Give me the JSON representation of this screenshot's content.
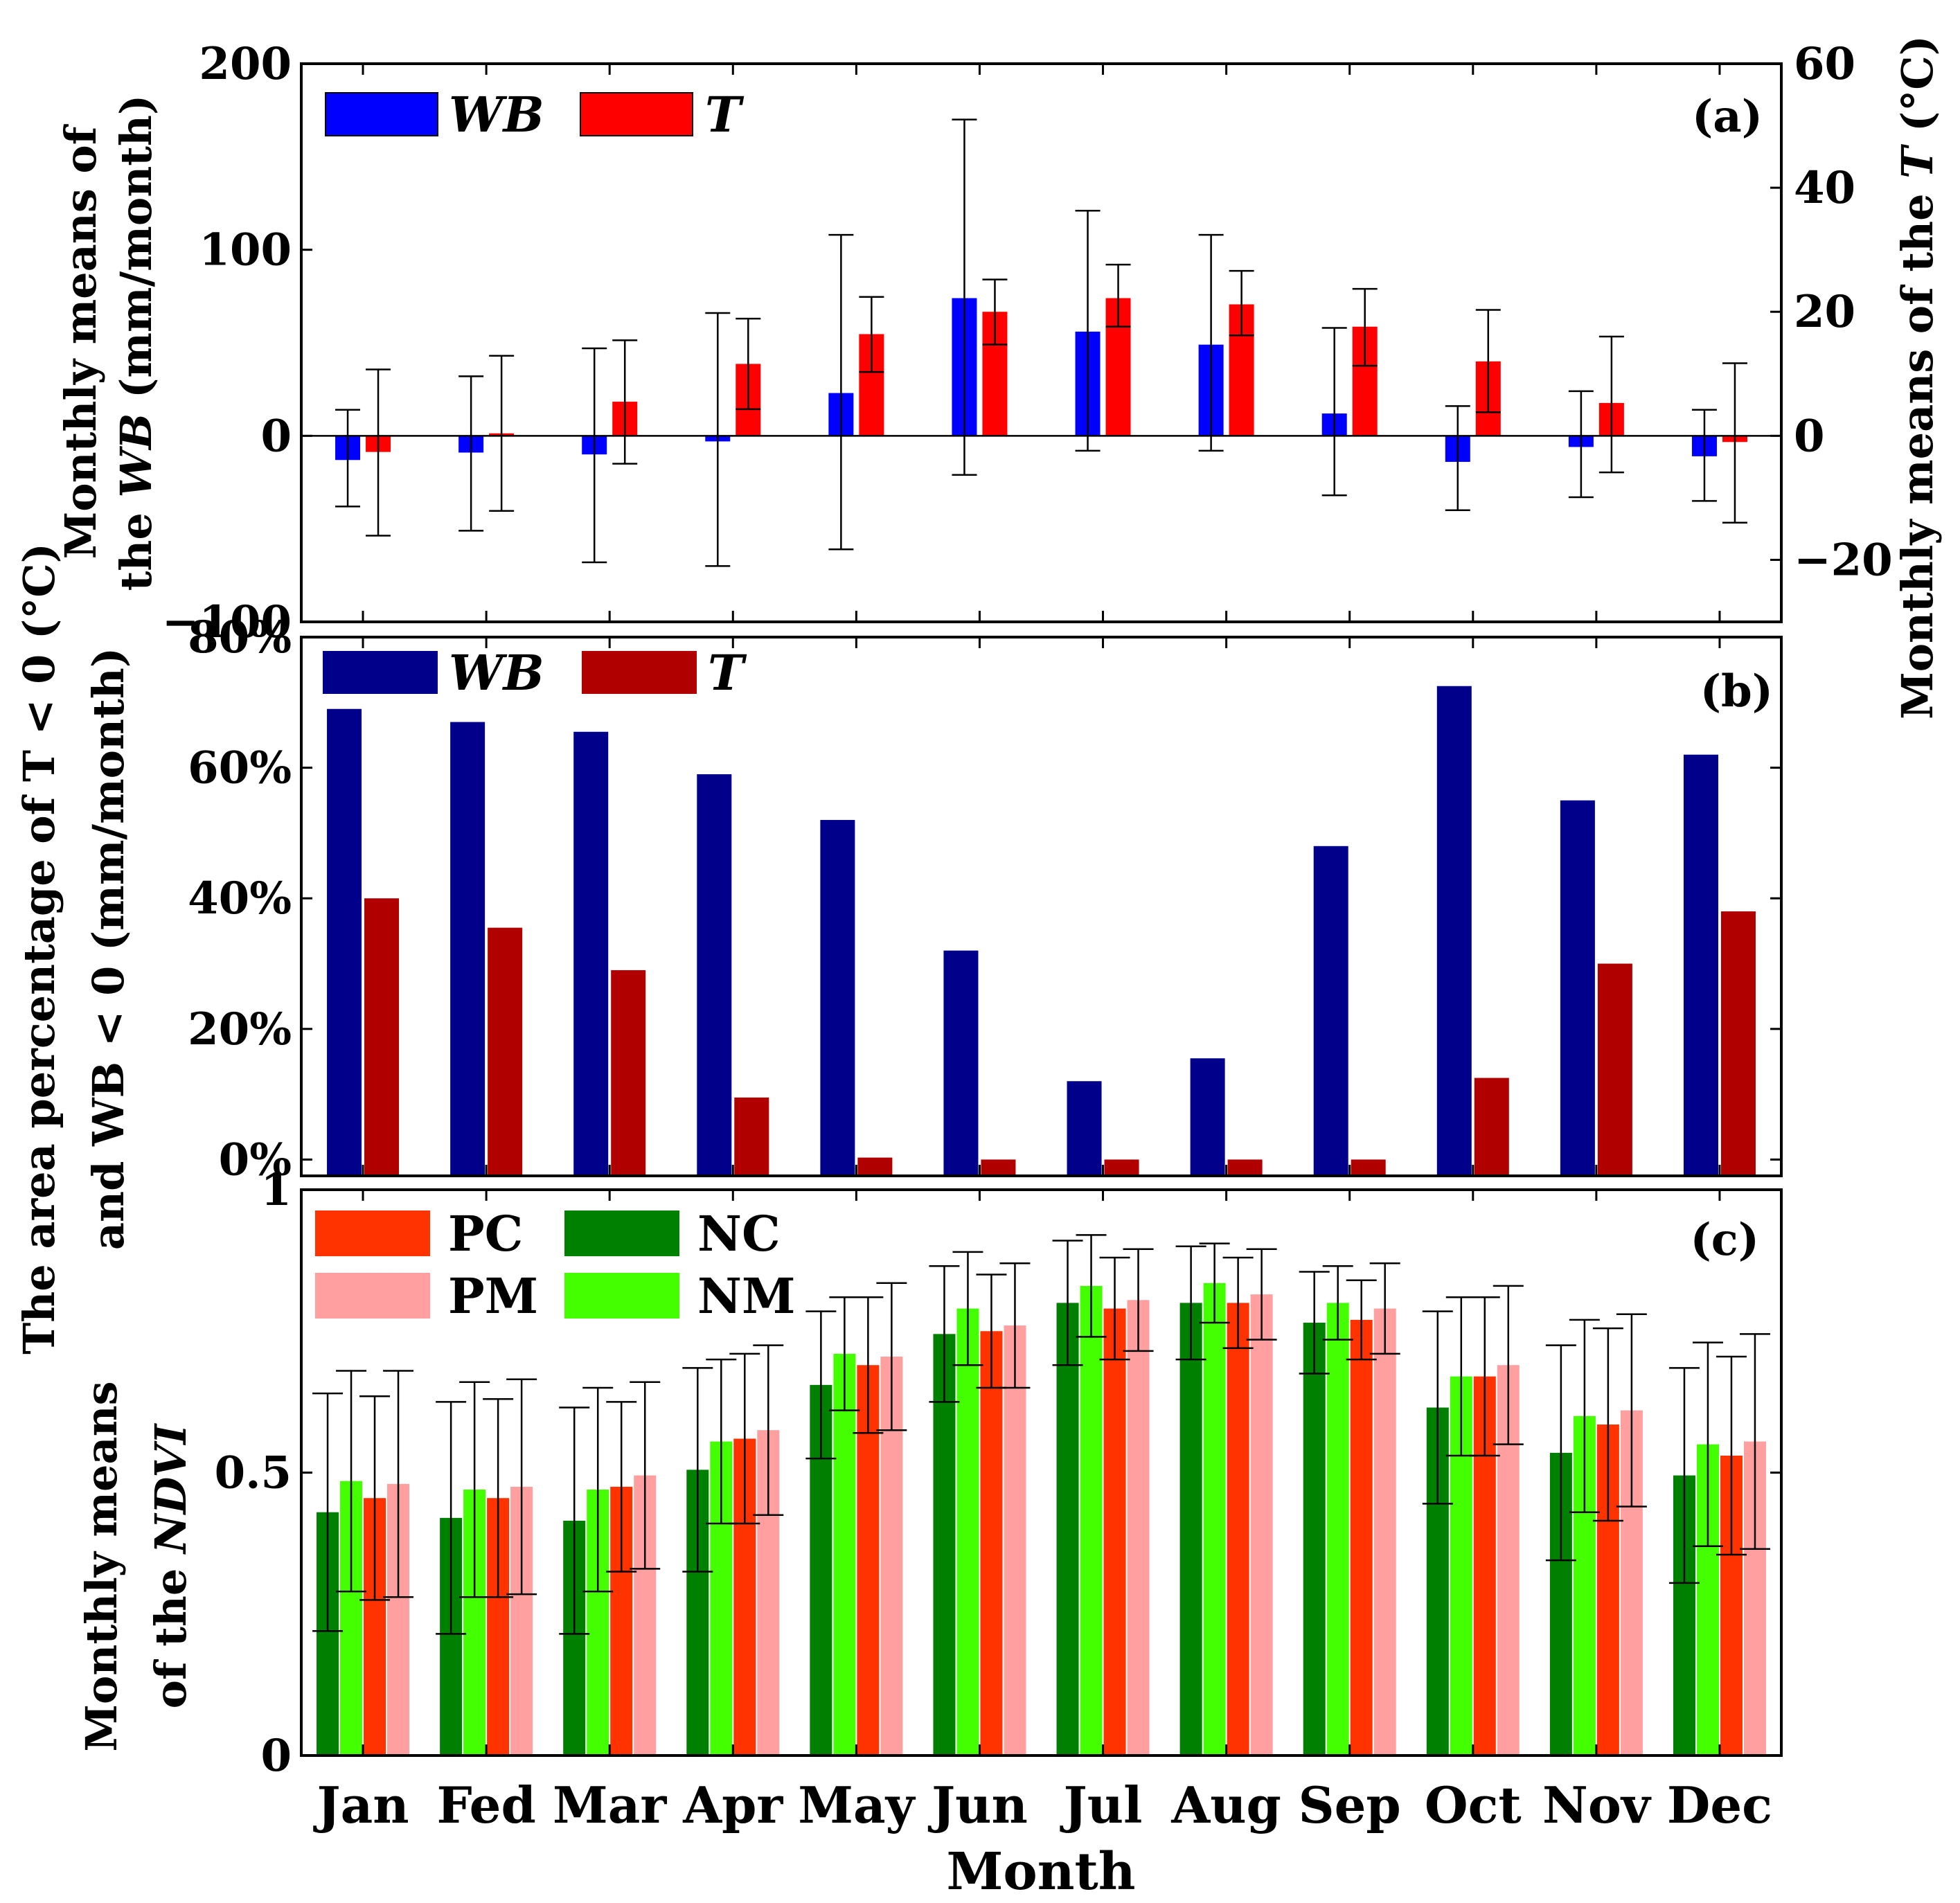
{
  "months": [
    "Jan",
    "Fed",
    "Mar",
    "Apr",
    "May",
    "Jun",
    "Jul",
    "Aug",
    "Sep",
    "Oct",
    "Nov",
    "Dec"
  ],
  "xlabel": "Month",
  "chart_data": [
    {
      "id": "a",
      "type": "bar",
      "panel_label": "(a)",
      "ylabel_left_1": "Monthly means of",
      "ylabel_left_2_plain": "the ",
      "ylabel_left_2_italic": "WB",
      "ylabel_left_2_tail": " (mm/month)",
      "ylabel_right_plain": "Monthly means of the ",
      "ylabel_right_italic": "T",
      "ylabel_right_tail": " (°C)",
      "ylim": [
        -100,
        200
      ],
      "ylim_right": [
        -30,
        60
      ],
      "yticks": [
        -100,
        0,
        100,
        200
      ],
      "ytick_labels": [
        "−100",
        "0",
        "100",
        "200"
      ],
      "yticks_right": [
        -20,
        0,
        20,
        40,
        60
      ],
      "ytick_labels_right": [
        "−20",
        "0",
        "20",
        "40",
        "60"
      ],
      "legend_placement": "top-left",
      "series": [
        {
          "name": "WB",
          "axis": "left",
          "color": "#0000ff",
          "values": [
            -13,
            -9,
            -10,
            -3,
            23,
            74,
            56,
            49,
            12,
            -14,
            -6,
            -11
          ],
          "err_low": [
            -38,
            -51,
            -68,
            -70,
            -61,
            -21,
            -8,
            -8,
            -32,
            -40,
            -33,
            -35
          ],
          "err_high": [
            14,
            32,
            47,
            66,
            108,
            170,
            121,
            108,
            58,
            16,
            24,
            14
          ]
        },
        {
          "name": "T",
          "axis": "right",
          "color": "#ff0000",
          "values": [
            -2.6,
            0.4,
            5.5,
            11.6,
            16.4,
            20.0,
            22.2,
            21.2,
            17.6,
            12.0,
            5.3,
            -1.0
          ],
          "err_low": [
            -16.1,
            -12.1,
            -4.5,
            4.3,
            10.3,
            14.7,
            17.6,
            16.2,
            11.3,
            3.8,
            -5.9,
            -14.0
          ],
          "err_high": [
            10.7,
            12.9,
            15.4,
            18.9,
            22.4,
            25.2,
            27.6,
            26.6,
            23.7,
            20.3,
            16.0,
            11.7
          ]
        }
      ]
    },
    {
      "id": "b",
      "type": "bar",
      "panel_label": "(b)",
      "ylabel_1": "The area percentage of T < 0 (°C)",
      "ylabel_2": "and WB < 0 (mm/month)",
      "ylim": [
        -2.5,
        80
      ],
      "yticks": [
        0,
        20,
        40,
        60,
        80
      ],
      "ytick_labels": [
        "0%",
        "20%",
        "40%",
        "60%",
        "80%"
      ],
      "legend_placement": "top-left",
      "series": [
        {
          "name": "WB",
          "color": "#00008b",
          "values": [
            69,
            67,
            65.5,
            59,
            52,
            32,
            12,
            15.5,
            48,
            72.5,
            55,
            62
          ]
        },
        {
          "name": "T",
          "color": "#b00000",
          "values": [
            40,
            35.5,
            29,
            9.5,
            0.3,
            0,
            0,
            0,
            0,
            12.5,
            30,
            38
          ]
        }
      ]
    },
    {
      "id": "c",
      "type": "bar",
      "panel_label": "(c)",
      "ylabel_1": "Monthly means",
      "ylabel_2_plain": "of the ",
      "ylabel_2_italic": "NDVI",
      "ylim": [
        0,
        1
      ],
      "yticks": [
        0,
        0.5,
        1
      ],
      "ytick_labels": [
        "0",
        "0.5",
        "1"
      ],
      "legend_placement": "top-left",
      "series": [
        {
          "name": "NC",
          "color": "#008000",
          "values": [
            0.43,
            0.42,
            0.415,
            0.505,
            0.655,
            0.745,
            0.8,
            0.8,
            0.765,
            0.615,
            0.535,
            0.495
          ],
          "err": [
            0.21,
            0.205,
            0.2,
            0.18,
            0.13,
            0.12,
            0.11,
            0.1,
            0.09,
            0.17,
            0.19,
            0.19
          ]
        },
        {
          "name": "NM",
          "color": "#44ff00",
          "values": [
            0.485,
            0.47,
            0.47,
            0.555,
            0.71,
            0.79,
            0.83,
            0.835,
            0.8,
            0.67,
            0.6,
            0.55
          ],
          "err": [
            0.195,
            0.19,
            0.18,
            0.145,
            0.1,
            0.1,
            0.09,
            0.07,
            0.065,
            0.14,
            0.17,
            0.18
          ]
        },
        {
          "name": "PC",
          "color": "#ff3300",
          "values": [
            0.455,
            0.455,
            0.475,
            0.56,
            0.69,
            0.75,
            0.79,
            0.8,
            0.77,
            0.67,
            0.585,
            0.53
          ],
          "err": [
            0.18,
            0.175,
            0.15,
            0.15,
            0.12,
            0.1,
            0.09,
            0.08,
            0.07,
            0.14,
            0.17,
            0.175
          ]
        },
        {
          "name": "PM",
          "color": "#ff9f9f",
          "values": [
            0.48,
            0.475,
            0.495,
            0.575,
            0.705,
            0.76,
            0.805,
            0.815,
            0.79,
            0.69,
            0.61,
            0.555
          ],
          "err": [
            0.2,
            0.19,
            0.165,
            0.15,
            0.13,
            0.11,
            0.09,
            0.08,
            0.08,
            0.14,
            0.17,
            0.19
          ]
        }
      ],
      "legend_order": [
        [
          "PC",
          "NC"
        ],
        [
          "PM",
          "NM"
        ]
      ]
    }
  ]
}
